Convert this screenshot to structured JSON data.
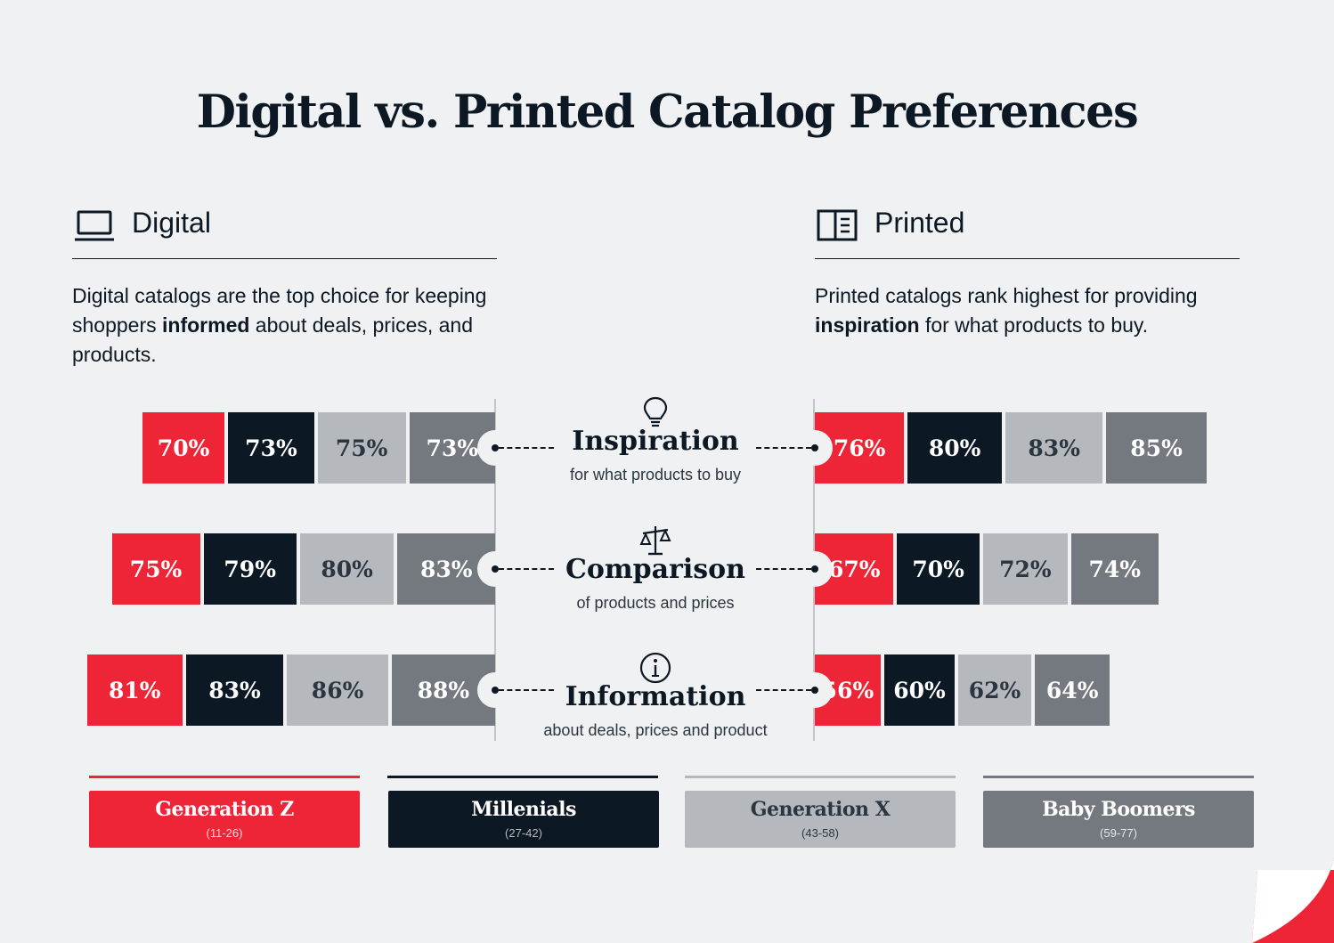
{
  "title": "Digital vs. Printed Catalog Preferences",
  "colors": {
    "gen_z": "#ee2537",
    "millenials": "#0c1823",
    "gen_x": "#b5b9bd",
    "baby_boomers": "#747980"
  },
  "digital": {
    "label": "Digital",
    "icon": "laptop-icon",
    "desc_before": "Digital catalogs are the top choice for keeping shoppers ",
    "desc_bold": "informed",
    "desc_after": " about deals, prices, and products."
  },
  "printed": {
    "label": "Printed",
    "icon": "book-icon",
    "desc_before": "Printed catalogs rank highest for providing ",
    "desc_bold": "inspiration",
    "desc_after": " for what products to buy."
  },
  "categories": [
    {
      "name": "Inspiration",
      "sub": "for what products to buy",
      "icon": "lightbulb-icon"
    },
    {
      "name": "Comparison",
      "sub": "of products and prices",
      "icon": "scales-icon"
    },
    {
      "name": "Information",
      "sub": "about deals, prices and product",
      "icon": "info-icon"
    }
  ],
  "legend": [
    {
      "name": "Generation Z",
      "range": "(11-26)"
    },
    {
      "name": "Millenials",
      "range": "(27-42)"
    },
    {
      "name": "Generation X",
      "range": "(43-58)"
    },
    {
      "name": "Baby Boomers",
      "range": "(59-77)"
    }
  ],
  "chart_data": {
    "type": "bar",
    "series_names": [
      "Generation Z",
      "Millenials",
      "Generation X",
      "Baby Boomers"
    ],
    "categories": [
      "Inspiration",
      "Comparison",
      "Information"
    ],
    "digital": {
      "Inspiration": [
        70,
        73,
        75,
        73
      ],
      "Comparison": [
        75,
        79,
        80,
        83
      ],
      "Information": [
        81,
        83,
        86,
        88
      ]
    },
    "printed": {
      "Inspiration": [
        76,
        80,
        83,
        85
      ],
      "Comparison": [
        67,
        70,
        72,
        74
      ],
      "Information": [
        56,
        60,
        62,
        64
      ]
    },
    "value_suffix": "%"
  }
}
